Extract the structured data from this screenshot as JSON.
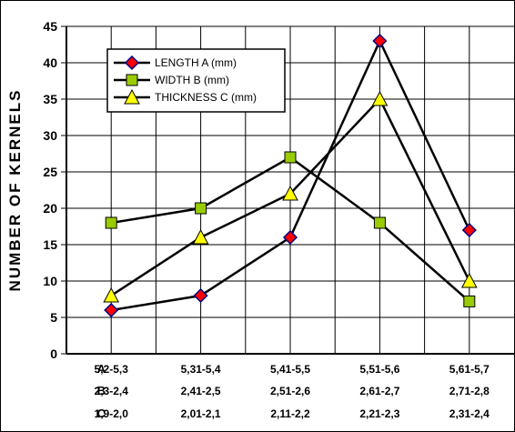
{
  "chart_data": {
    "type": "line",
    "ylabel": "NUMBER OF KERNELS",
    "ylim": [
      0,
      45
    ],
    "yticks": [
      0,
      5,
      10,
      15,
      20,
      25,
      30,
      35,
      40,
      45
    ],
    "grid": true,
    "legend_position": "top-left",
    "category_rows": [
      {
        "label": "A",
        "categories": [
          "5,2-5,3",
          "5,31-5,4",
          "5,41-5,5",
          "5,51-5,6",
          "5,61-5,7"
        ]
      },
      {
        "label": "B",
        "categories": [
          "2,3-2,4",
          "2,41-2,5",
          "2,51-2,6",
          "2,61-2,7",
          "2,71-2,8"
        ]
      },
      {
        "label": "C",
        "categories": [
          "1,9-2,0",
          "2,01-2,1",
          "2,11-2,2",
          "2,21-2,3",
          "2,31-2,4"
        ]
      }
    ],
    "series": [
      {
        "name": "LENGTH  A (mm)",
        "marker": "diamond",
        "color": "#ff0000",
        "values": [
          6,
          8,
          16,
          43,
          17
        ]
      },
      {
        "name": "WIDTH  B (mm)",
        "marker": "square",
        "color": "#99cc00",
        "values": [
          18,
          20,
          27,
          18,
          7.2
        ]
      },
      {
        "name": "THICKNESS  C (mm)",
        "marker": "triangle",
        "color": "#ffff00",
        "values": [
          8,
          16,
          22,
          35,
          10
        ]
      }
    ]
  }
}
